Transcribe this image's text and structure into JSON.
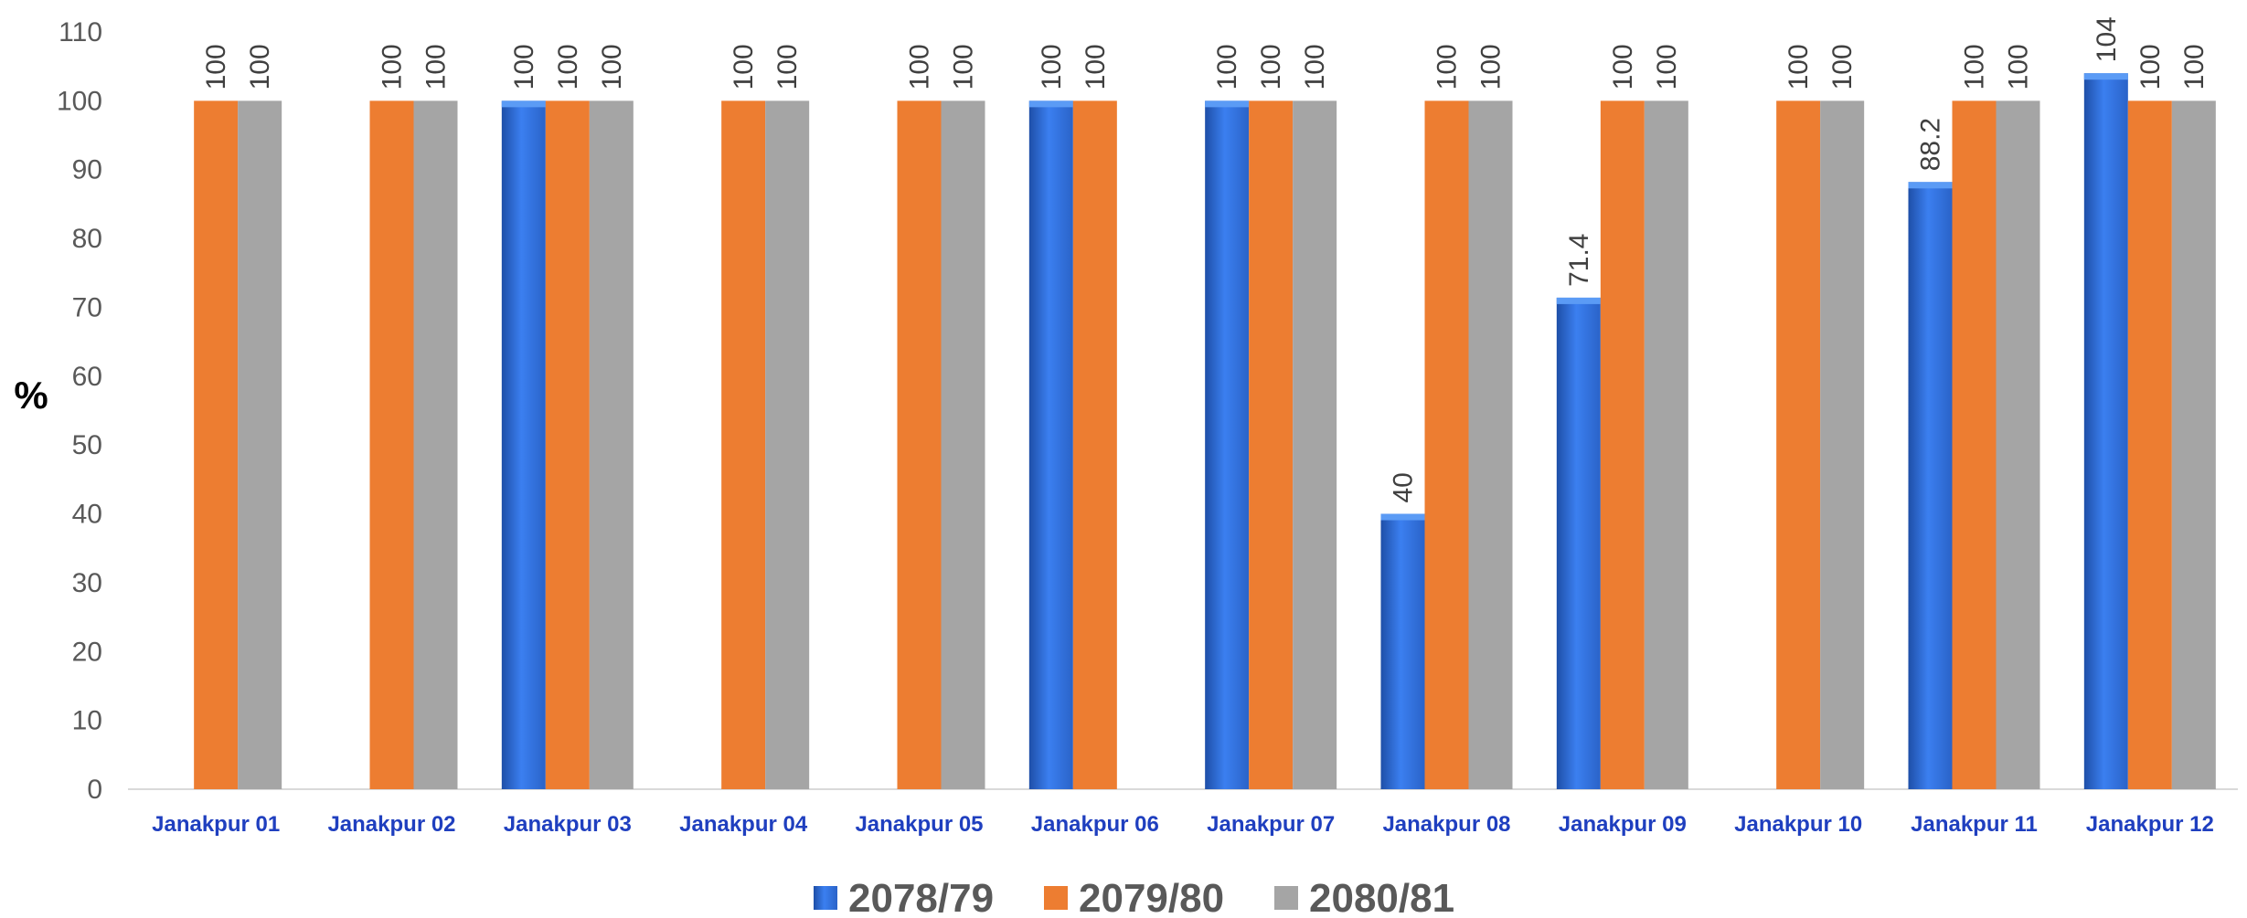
{
  "chart_data": {
    "type": "bar",
    "ylabel": "%",
    "xlabel": "",
    "ylim": [
      0,
      110
    ],
    "ytick_step": 10,
    "grid": false,
    "legend_position": "bottom",
    "categories": [
      "Janakpur 01",
      "Janakpur 02",
      "Janakpur 03",
      "Janakpur 04",
      "Janakpur 05",
      "Janakpur 06",
      "Janakpur 07",
      "Janakpur 08",
      "Janakpur 09",
      "Janakpur 10",
      "Janakpur 11",
      "Janakpur 12"
    ],
    "series": [
      {
        "name": "2078/79",
        "color": "#2f6fe0",
        "values": [
          null,
          null,
          100,
          null,
          null,
          100,
          100,
          40,
          71.4,
          null,
          88.2,
          104
        ]
      },
      {
        "name": "2079/80",
        "color": "#ed7d31",
        "values": [
          100,
          100,
          100,
          100,
          100,
          100,
          100,
          100,
          100,
          100,
          100,
          100
        ]
      },
      {
        "name": "2080/81",
        "color": "#a5a5a5",
        "values": [
          100,
          100,
          100,
          100,
          100,
          null,
          100,
          100,
          100,
          100,
          100,
          100
        ]
      }
    ]
  }
}
